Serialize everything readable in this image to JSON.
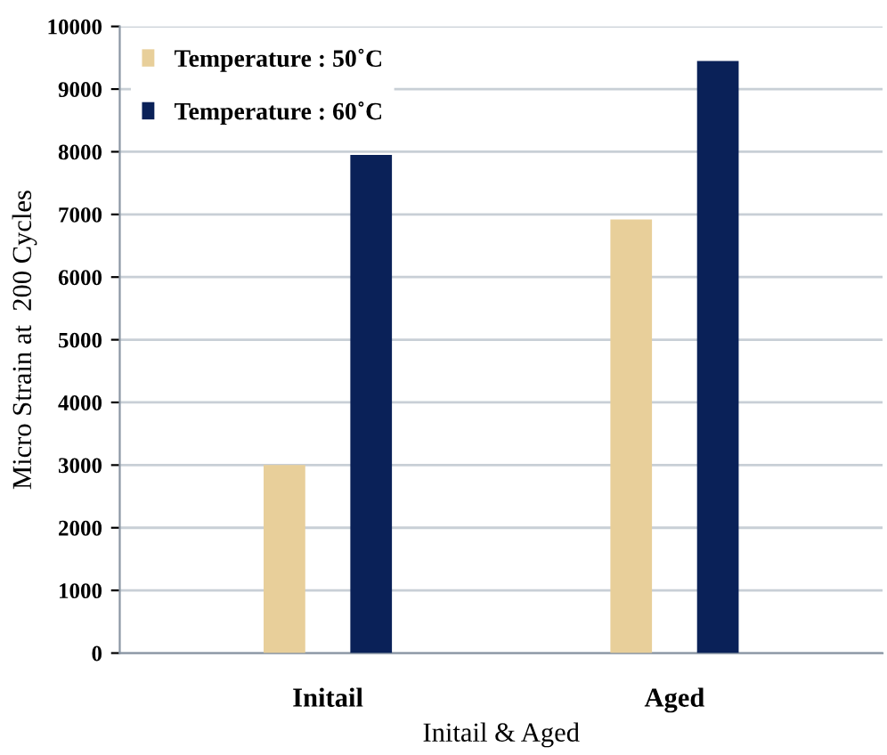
{
  "chart_data": {
    "type": "bar",
    "xlabel": "Initail & Aged",
    "ylabel": "Micro Strain at  200 Cycles",
    "categories": [
      "Initail",
      "Aged"
    ],
    "series": [
      {
        "name": "Temperature : 50˚C",
        "color": "#e8cf9a",
        "values": [
          3000,
          6920
        ]
      },
      {
        "name": "Temperature : 60˚C",
        "color": "#0a2158",
        "values": [
          7950,
          9450
        ]
      }
    ],
    "ylim": [
      0,
      10000
    ],
    "yticks": [
      0,
      1000,
      2000,
      3000,
      4000,
      5000,
      6000,
      7000,
      8000,
      9000,
      10000
    ],
    "grid": "y",
    "legend": "top left"
  }
}
